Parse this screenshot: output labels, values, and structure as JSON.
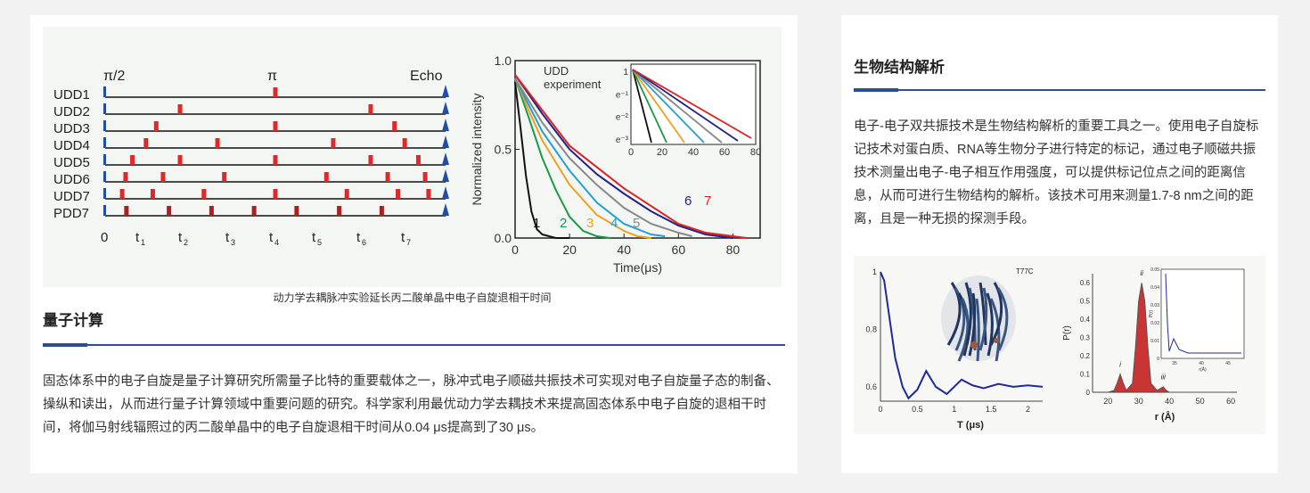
{
  "quantum": {
    "figure": {
      "pulse_labels": {
        "pi_half": "π/2",
        "pi": "π",
        "echo": "Echo"
      },
      "sequences": [
        "UDD1",
        "UDD2",
        "UDD3",
        "UDD4",
        "UDD5",
        "UDD6",
        "UDD7",
        "PDD7"
      ],
      "time_ticks": [
        "0",
        "t1",
        "t2",
        "t3",
        "t4",
        "t5",
        "t6",
        "t7"
      ],
      "chart_data": {
        "type": "line",
        "ylabel": "Normalized intensity",
        "xlabel": "Time(μs)",
        "xlim": [
          0,
          90
        ],
        "ylim": [
          0.0,
          1.0
        ],
        "x_ticks": [
          "0",
          "20",
          "40",
          "60",
          "80"
        ],
        "y_ticks": [
          "0.0",
          "0.5",
          "1.0"
        ],
        "annotation": "UDD experiment",
        "curve_labels": [
          "1",
          "2",
          "3",
          "4",
          "5",
          "6",
          "7"
        ],
        "series": [
          {
            "name": "1",
            "color": "#111111",
            "x": [
              0,
              2,
              4,
              6,
              8,
              10,
              15,
              20
            ],
            "y": [
              0.88,
              0.62,
              0.35,
              0.15,
              0.05,
              0.02,
              0.0,
              0.0
            ]
          },
          {
            "name": "2",
            "color": "#1a9a45",
            "x": [
              0,
              5,
              10,
              15,
              20,
              25,
              30,
              35
            ],
            "y": [
              0.9,
              0.68,
              0.45,
              0.27,
              0.12,
              0.04,
              0.01,
              0.0
            ]
          },
          {
            "name": "3",
            "color": "#f0a020",
            "x": [
              0,
              5,
              10,
              20,
              30,
              40,
              45,
              50
            ],
            "y": [
              0.9,
              0.72,
              0.55,
              0.3,
              0.13,
              0.04,
              0.01,
              0.0
            ]
          },
          {
            "name": "4",
            "color": "#22a0d8",
            "x": [
              0,
              5,
              10,
              20,
              30,
              40,
              50,
              55
            ],
            "y": [
              0.9,
              0.75,
              0.6,
              0.38,
              0.2,
              0.08,
              0.02,
              0.01
            ]
          },
          {
            "name": "5",
            "color": "#888888",
            "x": [
              0,
              10,
              20,
              30,
              40,
              50,
              60,
              65
            ],
            "y": [
              0.9,
              0.65,
              0.45,
              0.3,
              0.17,
              0.08,
              0.03,
              0.01
            ]
          },
          {
            "name": "6",
            "color": "#222288",
            "x": [
              0,
              10,
              20,
              30,
              40,
              50,
              60,
              70,
              80
            ],
            "y": [
              0.92,
              0.7,
              0.5,
              0.36,
              0.25,
              0.15,
              0.07,
              0.02,
              0.0
            ]
          },
          {
            "name": "7",
            "color": "#dd2222",
            "x": [
              0,
              10,
              20,
              30,
              40,
              50,
              60,
              70,
              85
            ],
            "y": [
              0.92,
              0.72,
              0.52,
              0.4,
              0.28,
              0.18,
              0.08,
              0.03,
              0.0
            ]
          }
        ],
        "inset": {
          "y_ticks": [
            "1",
            "e⁻¹",
            "e⁻²",
            "e⁻³"
          ],
          "x_ticks": [
            "0",
            "20",
            "40",
            "60",
            "80"
          ],
          "scale": "log"
        }
      }
    },
    "caption": "动力学去耦脉冲实验延长丙二酸单晶中电子自旋退相干时间",
    "title": "量子计算",
    "paragraph": "固态体系中的电子自旋是量子计算研究所需量子比特的重要载体之一，脉冲式电子顺磁共振技术可实现对电子自旋量子态的制备、操纵和读出，从而进行量子计算领域中重要问题的研究。科学家利用最优动力学去耦技术来提高固态体系中电子自旋的退相干时间，将伽马射线辐照过的丙二酸单晶中的电子自旋退相干时间从0.04 μs提高到了30 μs。"
  },
  "bio": {
    "title": "生物结构解析",
    "paragraph": "电子-电子双共振技术是生物结构解析的重要工具之一。使用电子自旋标记技术对蛋白质、RNA等生物分子进行特定的标记，通过电子顺磁共振技术测量出电子-电子相互作用强度，可以提供标记位点之间的距离信息，从而可进行生物结构的解析。该技术可用来测量1.7-8 nm之间的距离，且是一种无损的探测手段。",
    "figure": {
      "protein_label": "T77C",
      "chart_data": [
        {
          "type": "line",
          "xlabel": "T (μs)",
          "x_ticks": [
            "0",
            "0.5",
            "1",
            "1.5",
            "2"
          ],
          "y_ticks": [
            "1",
            "0.8",
            "0.6"
          ],
          "xlim": [
            0,
            2.2
          ],
          "ylim": [
            0.55,
            1.0
          ],
          "series": [
            {
              "x": [
                0,
                0.05,
                0.1,
                0.2,
                0.3,
                0.38,
                0.5,
                0.62,
                0.75,
                0.9,
                1.0,
                1.1,
                1.25,
                1.4,
                1.6,
                1.8,
                2.0,
                2.2
              ],
              "y": [
                1.0,
                0.97,
                0.88,
                0.7,
                0.6,
                0.56,
                0.59,
                0.655,
                0.6,
                0.575,
                0.6,
                0.625,
                0.605,
                0.595,
                0.61,
                0.6,
                0.605,
                0.6
              ]
            }
          ]
        },
        {
          "type": "area",
          "xlabel": "r (Å)",
          "ylabel": "P(r)",
          "x_ticks": [
            "20",
            "30",
            "40",
            "50",
            "60"
          ],
          "y_ticks": [
            "0",
            "0.1",
            "0.2",
            "0.3",
            "0.4",
            "0.5",
            "0.6"
          ],
          "xlim": [
            15,
            62
          ],
          "ylim": [
            0,
            0.65
          ],
          "peak_labels": [
            "i",
            "ii",
            "iii"
          ],
          "series": [
            {
              "x": [
                20,
                22,
                23,
                24,
                25,
                26,
                28,
                29,
                30,
                31,
                32,
                33,
                34,
                36,
                37,
                38,
                39,
                40,
                45,
                60
              ],
              "y": [
                0,
                0.01,
                0.05,
                0.1,
                0.05,
                0.01,
                0.05,
                0.25,
                0.5,
                0.6,
                0.5,
                0.25,
                0.05,
                0.01,
                0.02,
                0.03,
                0.01,
                0,
                0,
                0
              ]
            }
          ],
          "inset": {
            "ylabel": "P(r)",
            "xlabel": "r(Å)",
            "x_ticks": [
              "35",
              "40",
              "45"
            ],
            "y_ticks": [
              "0",
              "0.01",
              "0.02",
              "0.03",
              "0.04",
              "0.05"
            ]
          }
        }
      ]
    }
  }
}
